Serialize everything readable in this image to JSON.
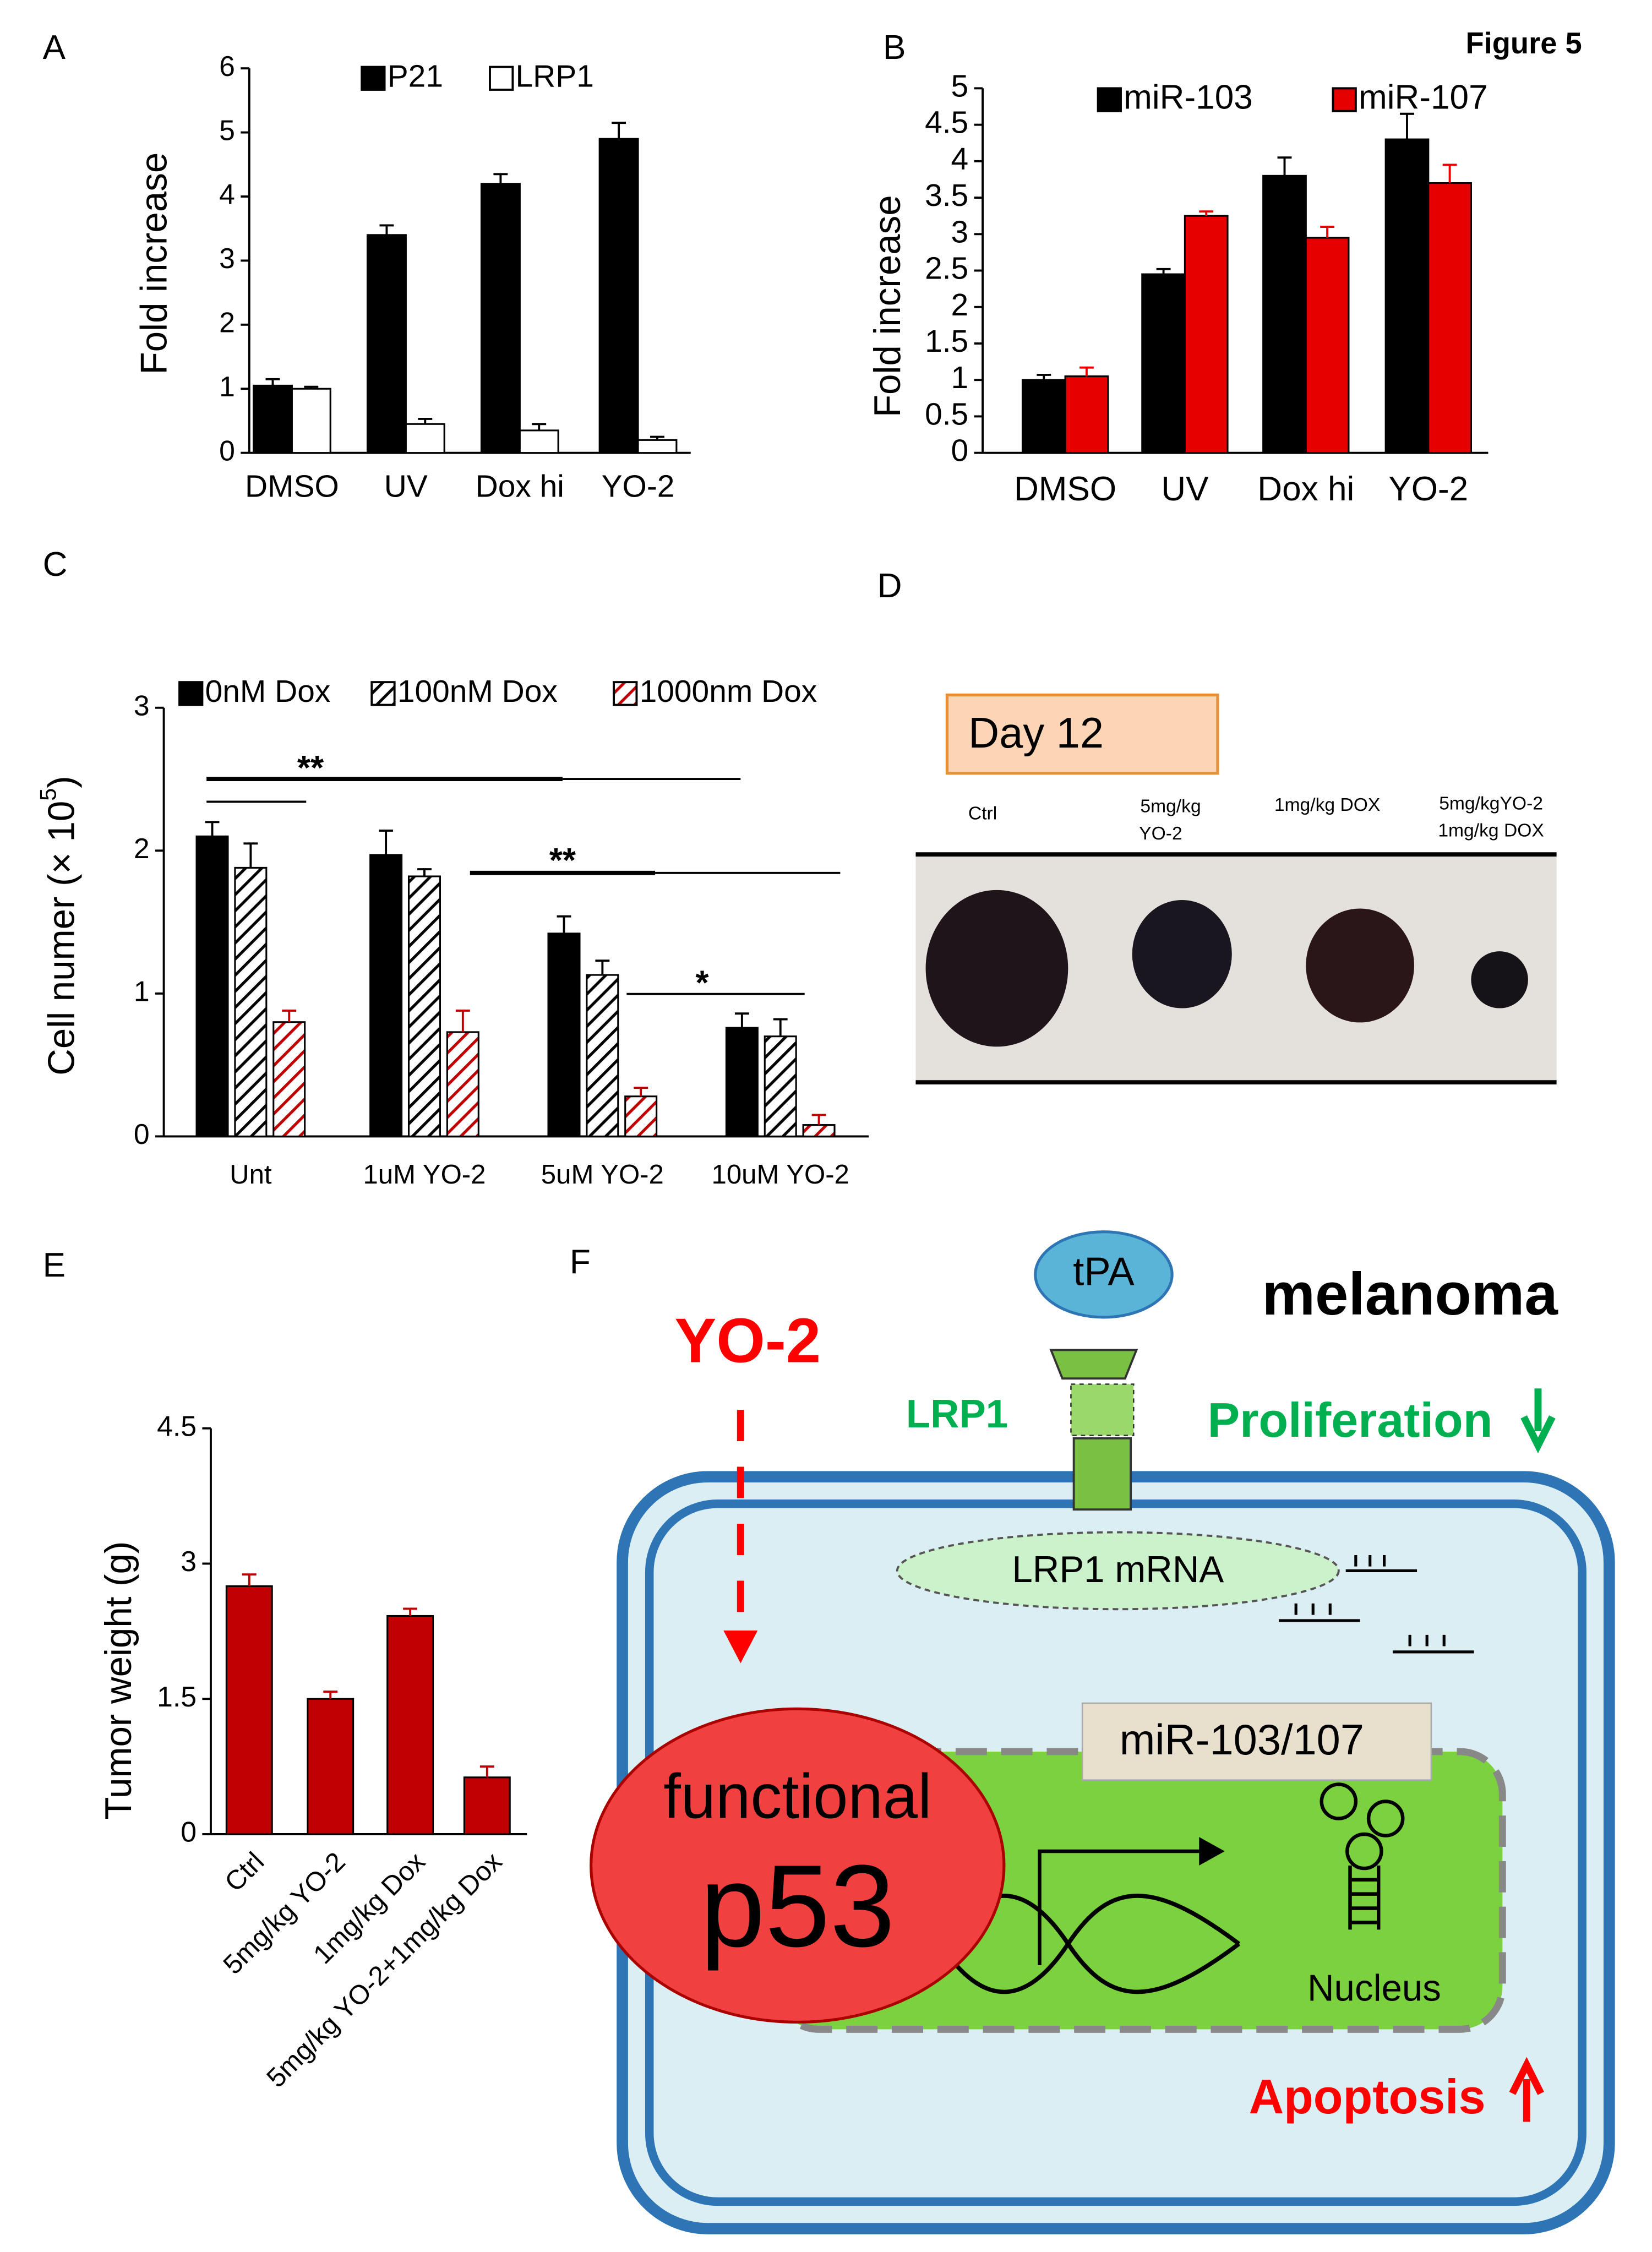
{
  "figure_title": "Figure 5",
  "chart_data": [
    {
      "type": "bar",
      "panel": "A",
      "y_label": "Fold increase",
      "categories": [
        "DMSO",
        "UV",
        "Dox hi",
        "YO-2"
      ],
      "series": [
        {
          "name": "P21",
          "color": "#000000",
          "values": [
            1.05,
            3.4,
            4.2,
            4.9
          ],
          "errors": [
            0.1,
            0.15,
            0.15,
            0.25
          ]
        },
        {
          "name": "LRP1",
          "color": "#ffffff",
          "values": [
            1.0,
            0.45,
            0.35,
            0.2
          ],
          "errors": [
            0.03,
            0.08,
            0.1,
            0.05
          ]
        }
      ],
      "ylim": [
        0,
        6
      ],
      "yticks": [
        0,
        1,
        2,
        3,
        4,
        5,
        6
      ]
    },
    {
      "type": "bar",
      "panel": "B",
      "y_label": "Fold increase",
      "categories": [
        "DMSO",
        "UV",
        "Dox hi",
        "YO-2"
      ],
      "series": [
        {
          "name": "miR-103",
          "color": "#000000",
          "values": [
            1.0,
            2.45,
            3.8,
            4.3
          ],
          "errors": [
            0.07,
            0.07,
            0.25,
            0.35
          ]
        },
        {
          "name": "miR-107",
          "color": "#e60000",
          "values": [
            1.05,
            3.25,
            2.95,
            3.7
          ],
          "errors": [
            0.12,
            0.06,
            0.15,
            0.25
          ]
        }
      ],
      "ylim": [
        0,
        5
      ],
      "yticks": [
        0,
        0.5,
        1,
        1.5,
        2,
        2.5,
        3,
        3.5,
        4,
        4.5,
        5
      ]
    },
    {
      "type": "bar",
      "panel": "C",
      "y_label": "Cell numer (× 10",
      "y_label_superscript": "5",
      "y_label_end": ")",
      "categories": [
        "Unt",
        "1uM YO-2",
        "5uM YO-2",
        "10uM YO-2"
      ],
      "series": [
        {
          "name": "0nM Dox",
          "color": "#000000",
          "values": [
            2.1,
            1.97,
            1.42,
            0.76
          ],
          "errors": [
            0.1,
            0.17,
            0.12,
            0.1
          ]
        },
        {
          "name": "100nM Dox",
          "color": "#000000",
          "hatch": true,
          "values": [
            1.88,
            1.82,
            1.13,
            0.7
          ],
          "errors": [
            0.17,
            0.05,
            0.1,
            0.12
          ]
        },
        {
          "name": "1000nm Dox",
          "color": "#c00000",
          "hatch": true,
          "values": [
            0.8,
            0.73,
            0.28,
            0.08
          ],
          "errors": [
            0.08,
            0.15,
            0.06,
            0.07
          ]
        }
      ],
      "annotations": [
        "**",
        "**",
        "*"
      ],
      "ylim": [
        0,
        3
      ],
      "yticks": [
        0,
        1,
        2,
        3
      ]
    },
    {
      "type": "bar",
      "panel": "E",
      "y_label": "Tumor weight (g)",
      "categories": [
        "Ctrl",
        "5mg/kg YO-2",
        "1mg/kg Dox",
        "5mg/kg YO-2+1mg/kg Dox"
      ],
      "values": [
        2.75,
        1.5,
        2.42,
        0.63
      ],
      "errors": [
        0.13,
        0.08,
        0.08,
        0.12
      ],
      "color": "#c00000",
      "rotate_x_labels": true,
      "ylim": [
        0,
        4.5
      ],
      "yticks": [
        0,
        1.5,
        3,
        4.5
      ]
    }
  ],
  "photo_panel": {
    "panel": "D",
    "day_label": "Day 12",
    "groups": [
      [
        "Ctrl"
      ],
      [
        "5mg/kg",
        "YO-2"
      ],
      [
        "1mg/kg DOX"
      ],
      [
        "5mg/kgYO-2",
        "1mg/kg DOX"
      ]
    ]
  },
  "diagram": {
    "panel": "F",
    "ligand": "tPA",
    "cell_type": "melanoma",
    "drug": "YO-2",
    "receptor": "LRP1",
    "proliferation": "Proliferation",
    "mrna": "LRP1 mRNA",
    "mirna": "miR-103/107",
    "p53_top": "functional",
    "p53_main": "p53",
    "nucleus": "Nucleus",
    "apoptosis": "Apoptosis"
  }
}
